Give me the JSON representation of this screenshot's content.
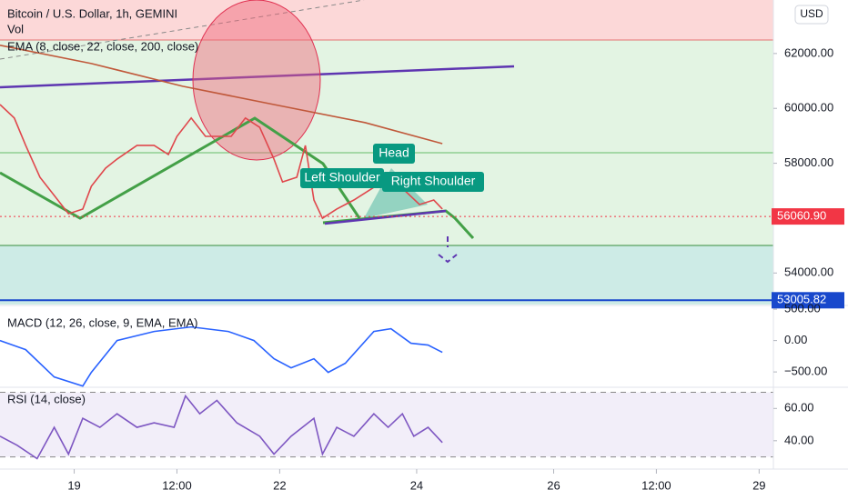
{
  "chart_data": [
    {
      "type": "line",
      "title": "Bitcoin / U.S. Dollar, 1h, GEMINI",
      "subtitle": "Vol",
      "indicator": "EMA (8, close, 22, close, 200, close)",
      "currency": "USD",
      "xlim": [
        -26,
        245
      ],
      "ylim": [
        52850,
        63950
      ],
      "grid": false,
      "yticks": [
        {
          "value": 62000,
          "label": "62000.00"
        },
        {
          "value": 60000,
          "label": "60000.00"
        },
        {
          "value": 58000,
          "label": "58000.00"
        },
        {
          "value": 54000,
          "label": "54000.00"
        }
      ],
      "price_lines": [
        {
          "value": 56060.9,
          "label": "56060.90",
          "color": "#f23645"
        },
        {
          "value": 53005.82,
          "label": "53005.82",
          "color": "#1848cc"
        }
      ],
      "annotations": [
        "Head",
        "Left Shoulder",
        "Right Shoulder"
      ],
      "x": [
        -26,
        -21,
        -17,
        -12,
        -7,
        -2,
        3,
        6,
        11,
        15,
        22,
        28,
        33,
        36,
        41,
        46,
        50,
        55,
        60,
        65,
        70,
        73,
        78,
        81,
        84,
        87,
        92,
        98,
        103,
        108,
        111,
        116,
        121,
        126,
        129
      ],
      "series": [
        {
          "color": "#e0474c",
          "values": [
            60140,
            59650,
            58650,
            57490,
            56825,
            56160,
            56330,
            57160,
            57820,
            58150,
            58650,
            58650,
            58320,
            58980,
            59650,
            58980,
            58980,
            58980,
            59650,
            59310,
            58150,
            57320,
            57490,
            58650,
            56660,
            55995,
            56330,
            56660,
            56990,
            57320,
            57655,
            56990,
            56495,
            56660,
            56330
          ]
        },
        {
          "color": "#c0583a",
          "x": [
            -26,
            6,
            38,
            70,
            102,
            129
          ],
          "values": [
            62300,
            61635,
            60806,
            60140,
            59479,
            58716
          ]
        }
      ]
    },
    {
      "type": "line",
      "title": "MACD (12, 26, close, 9, EMA, EMA)",
      "xlim": [
        -26,
        245
      ],
      "ylim": [
        -730,
        545
      ],
      "grid": false,
      "yticks": [
        {
          "value": 500,
          "label": "500.00"
        },
        {
          "value": 0,
          "label": "0.00"
        },
        {
          "value": -500,
          "label": "−500.00"
        }
      ],
      "x": [
        -26,
        -17,
        -7,
        3,
        6,
        15,
        28,
        41,
        54,
        63,
        70,
        76,
        84,
        89,
        95,
        105,
        111,
        118,
        124,
        129
      ],
      "series": [
        {
          "color": "#2962ff",
          "values": [
            0,
            -145,
            -580,
            -725,
            -507,
            0,
            145,
            217,
            145,
            0,
            -290,
            -435,
            -290,
            -507,
            -362,
            145,
            188,
            -43,
            -72,
            -188
          ]
        }
      ]
    },
    {
      "type": "line",
      "title": "RSI (14, close)",
      "xlim": [
        -26,
        245
      ],
      "ylim": [
        23,
        72
      ],
      "grid": false,
      "band": [
        30,
        70
      ],
      "yticks": [
        {
          "value": 60,
          "label": "60.00"
        },
        {
          "value": 40,
          "label": "40.00"
        }
      ],
      "xticks": [
        {
          "value": 0,
          "label": "19"
        },
        {
          "value": 36,
          "label": "12:00"
        },
        {
          "value": 72,
          "label": "22"
        },
        {
          "value": 120,
          "label": "24"
        },
        {
          "value": 168,
          "label": "26"
        },
        {
          "value": 204,
          "label": "12:00"
        },
        {
          "value": 240,
          "label": "29"
        }
      ],
      "x": [
        -26,
        -20,
        -13,
        -7,
        -2,
        3,
        9,
        15,
        22,
        28,
        35,
        39,
        44,
        50,
        57,
        65,
        70,
        76,
        84,
        87,
        92,
        98,
        105,
        110,
        115,
        119,
        124,
        129
      ],
      "series": [
        {
          "color": "#7e57c2",
          "values": [
            42.8,
            37.2,
            28.9,
            48.3,
            31.7,
            53.9,
            48.3,
            56.7,
            48.3,
            51.1,
            48.3,
            67.8,
            56.7,
            65.0,
            51.1,
            42.8,
            31.7,
            42.8,
            53.9,
            31.7,
            48.3,
            42.8,
            56.7,
            48.3,
            56.7,
            42.8,
            48.3,
            38.9
          ]
        }
      ]
    }
  ]
}
